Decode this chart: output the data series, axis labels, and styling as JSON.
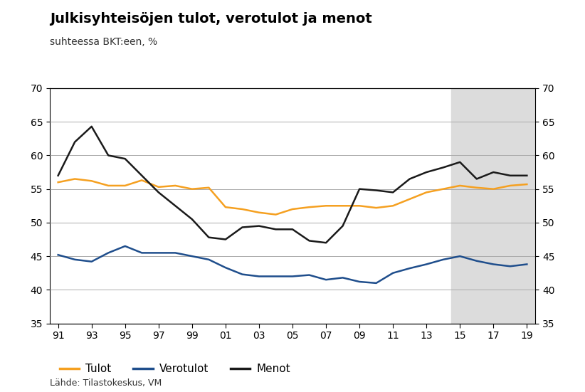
{
  "title": "Julkisyhteisöjen tulot, verotulot ja menot",
  "subtitle": "suhteessa BKT:een, %",
  "source": "Lähde: Tilastokeskus, VM",
  "years": [
    1991,
    1992,
    1993,
    1994,
    1995,
    1996,
    1997,
    1998,
    1999,
    2000,
    2001,
    2002,
    2003,
    2004,
    2005,
    2006,
    2007,
    2008,
    2009,
    2010,
    2011,
    2012,
    2013,
    2014,
    2015,
    2016,
    2017,
    2018,
    2019
  ],
  "tulot": [
    56.0,
    56.5,
    56.2,
    55.5,
    55.5,
    56.3,
    55.3,
    55.5,
    55.0,
    55.2,
    52.3,
    52.0,
    51.5,
    51.2,
    52.0,
    52.3,
    52.5,
    52.5,
    52.5,
    52.2,
    52.5,
    53.5,
    54.5,
    55.0,
    55.5,
    55.2,
    55.0,
    55.5,
    55.7
  ],
  "verotulot": [
    45.2,
    44.5,
    44.2,
    45.5,
    46.5,
    45.5,
    45.5,
    45.5,
    45.0,
    44.5,
    43.3,
    42.3,
    42.0,
    42.0,
    42.0,
    42.2,
    41.5,
    41.8,
    41.2,
    41.0,
    42.5,
    43.2,
    43.8,
    44.5,
    45.0,
    44.3,
    43.8,
    43.5,
    43.8
  ],
  "menot": [
    57.0,
    62.0,
    64.3,
    60.0,
    59.5,
    57.0,
    54.5,
    52.5,
    50.5,
    47.8,
    47.5,
    49.3,
    49.5,
    49.0,
    49.0,
    47.3,
    47.0,
    49.5,
    55.0,
    54.8,
    54.5,
    56.5,
    57.5,
    58.2,
    59.0,
    56.5,
    57.5,
    57.0,
    57.0
  ],
  "shade_start": 2014.5,
  "shade_end": 2019.5,
  "ylim": [
    35,
    70
  ],
  "yticks": [
    35,
    40,
    45,
    50,
    55,
    60,
    65,
    70
  ],
  "xtick_labels": [
    "91",
    "93",
    "95",
    "97",
    "99",
    "01",
    "03",
    "05",
    "07",
    "09",
    "11",
    "13",
    "15",
    "17",
    "19"
  ],
  "xtick_positions": [
    1991,
    1993,
    1995,
    1997,
    1999,
    2001,
    2003,
    2005,
    2007,
    2009,
    2011,
    2013,
    2015,
    2017,
    2019
  ],
  "xlim_left": 1990.5,
  "xlim_right": 2019.5,
  "color_tulot": "#F5A020",
  "color_verotulot": "#1F4E8C",
  "color_menot": "#1A1A1A",
  "shade_color": "#DCDCDC",
  "grid_color": "#AAAAAA",
  "linewidth": 1.8,
  "legend_labels": [
    "Tulot",
    "Verotulot",
    "Menot"
  ]
}
